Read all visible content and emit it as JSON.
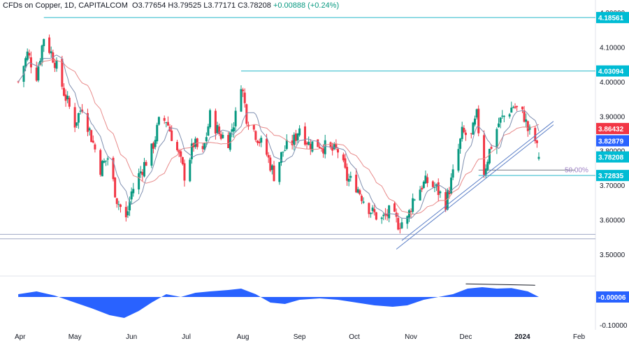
{
  "header": {
    "symbol": "CFDs on Copper, 1D, CAPITALCOM",
    "open": "O3.77654",
    "high": "H3.79525",
    "low": "L3.77171",
    "close": "C3.78208",
    "change": "+0.00888 (+0.24%)"
  },
  "colors": {
    "up": "#089981",
    "down": "#f23645",
    "level_line": "#26b7c9",
    "sma_fast": "#7f8fb0",
    "sma_slow": "#e88a8a",
    "trendline": "#5b7fc7",
    "oscillator": "#2962ff",
    "fib_label": "#9c7fc4",
    "price_label_red": "#f23645",
    "price_label_blue": "#2962ff",
    "price_label_cyan": "#00bcd4"
  },
  "chart_data": {
    "type": "candlestick",
    "title": "CFDs on Copper, 1D, CAPITALCOM",
    "ylim": [
      3.45,
      4.2
    ],
    "y_ticks": [
      "4.20000",
      "4.10000",
      "4.00000",
      "3.90000",
      "3.80000",
      "3.70000",
      "3.60000",
      "3.50000"
    ],
    "x_ticks": [
      "Apr",
      "May",
      "Jun",
      "Jul",
      "Aug",
      "Sep",
      "Oct",
      "Nov",
      "Dec",
      "2024",
      "Feb"
    ],
    "price_labels": [
      {
        "text": "4.18561",
        "value": 4.18561,
        "style": "cyan"
      },
      {
        "text": "4.03094",
        "value": 4.03094,
        "style": "cyan"
      },
      {
        "text": "3.86432",
        "value": 3.86432,
        "style": "red"
      },
      {
        "text": "3.82879",
        "value": 3.82879,
        "style": "blue"
      },
      {
        "text": "3.78208",
        "value": 3.78208,
        "style": "cyan"
      },
      {
        "text": "3.72835",
        "value": 3.72835,
        "style": "cyan"
      }
    ],
    "horizontal_levels": [
      4.18561,
      4.03094,
      3.72835
    ],
    "support_zone": [
      3.545,
      3.558
    ],
    "fib_label": "50.00%",
    "close_path": [
      [
        "2023-03-31",
        4.0
      ],
      [
        "2023-04-05",
        4.08
      ],
      [
        "2023-04-10",
        4.02
      ],
      [
        "2023-04-14",
        4.13
      ],
      [
        "2023-04-20",
        4.06
      ],
      [
        "2023-04-25",
        3.97
      ],
      [
        "2023-05-01",
        3.88
      ],
      [
        "2023-05-05",
        3.93
      ],
      [
        "2023-05-10",
        3.84
      ],
      [
        "2023-05-15",
        3.75
      ],
      [
        "2023-05-19",
        3.78
      ],
      [
        "2023-05-24",
        3.66
      ],
      [
        "2023-05-29",
        3.6
      ],
      [
        "2023-06-01",
        3.68
      ],
      [
        "2023-06-06",
        3.74
      ],
      [
        "2023-06-12",
        3.8
      ],
      [
        "2023-06-16",
        3.88
      ],
      [
        "2023-06-20",
        3.89
      ],
      [
        "2023-06-26",
        3.8
      ],
      [
        "2023-06-30",
        3.73
      ],
      [
        "2023-07-05",
        3.82
      ],
      [
        "2023-07-10",
        3.79
      ],
      [
        "2023-07-14",
        3.9
      ],
      [
        "2023-07-19",
        3.85
      ],
      [
        "2023-07-24",
        3.83
      ],
      [
        "2023-07-28",
        3.9
      ],
      [
        "2023-07-31",
        4.0
      ],
      [
        "2023-08-03",
        3.9
      ],
      [
        "2023-08-08",
        3.85
      ],
      [
        "2023-08-14",
        3.79
      ],
      [
        "2023-08-18",
        3.73
      ],
      [
        "2023-08-23",
        3.8
      ],
      [
        "2023-08-29",
        3.83
      ],
      [
        "2023-09-01",
        3.87
      ],
      [
        "2023-09-06",
        3.82
      ],
      [
        "2023-09-12",
        3.82
      ],
      [
        "2023-09-18",
        3.8
      ],
      [
        "2023-09-22",
        3.8
      ],
      [
        "2023-09-27",
        3.72
      ],
      [
        "2023-10-02",
        3.7
      ],
      [
        "2023-10-06",
        3.66
      ],
      [
        "2023-10-11",
        3.62
      ],
      [
        "2023-10-16",
        3.6
      ],
      [
        "2023-10-20",
        3.62
      ],
      [
        "2023-10-25",
        3.59
      ],
      [
        "2023-10-30",
        3.6
      ],
      [
        "2023-11-02",
        3.66
      ],
      [
        "2023-11-07",
        3.7
      ],
      [
        "2023-11-10",
        3.71
      ],
      [
        "2023-11-15",
        3.69
      ],
      [
        "2023-11-20",
        3.65
      ],
      [
        "2023-11-24",
        3.73
      ],
      [
        "2023-11-29",
        3.85
      ],
      [
        "2023-12-04",
        3.84
      ],
      [
        "2023-12-07",
        3.9
      ],
      [
        "2023-12-11",
        3.74
      ],
      [
        "2023-12-14",
        3.8
      ],
      [
        "2023-12-19",
        3.88
      ],
      [
        "2023-12-22",
        3.9
      ],
      [
        "2023-12-27",
        3.93
      ],
      [
        "2024-01-02",
        3.9
      ],
      [
        "2024-01-04",
        3.86
      ],
      [
        "2024-01-08",
        3.83
      ],
      [
        "2024-01-10",
        3.78
      ]
    ],
    "oscillator": {
      "labels": [
        "-0.00006",
        "-0.10000"
      ],
      "values": [
        [
          "2023-03-31",
          0.01
        ],
        [
          "2023-04-10",
          0.02
        ],
        [
          "2023-04-20",
          0.005
        ],
        [
          "2023-05-01",
          -0.02
        ],
        [
          "2023-05-10",
          -0.04
        ],
        [
          "2023-05-20",
          -0.065
        ],
        [
          "2023-05-28",
          -0.075
        ],
        [
          "2023-06-05",
          -0.05
        ],
        [
          "2023-06-12",
          -0.02
        ],
        [
          "2023-06-20",
          0.01
        ],
        [
          "2023-06-28",
          0.0
        ],
        [
          "2023-07-06",
          0.015
        ],
        [
          "2023-07-14",
          0.02
        ],
        [
          "2023-07-24",
          0.025
        ],
        [
          "2023-07-31",
          0.03
        ],
        [
          "2023-08-08",
          0.01
        ],
        [
          "2023-08-16",
          -0.02
        ],
        [
          "2023-08-24",
          -0.025
        ],
        [
          "2023-09-01",
          -0.01
        ],
        [
          "2023-09-12",
          -0.005
        ],
        [
          "2023-09-22",
          -0.01
        ],
        [
          "2023-10-02",
          -0.02
        ],
        [
          "2023-10-12",
          -0.03
        ],
        [
          "2023-10-22",
          -0.035
        ],
        [
          "2023-10-30",
          -0.03
        ],
        [
          "2023-11-08",
          -0.01
        ],
        [
          "2023-11-16",
          0.0
        ],
        [
          "2023-11-24",
          0.01
        ],
        [
          "2023-12-02",
          0.03
        ],
        [
          "2023-12-10",
          0.035
        ],
        [
          "2023-12-18",
          0.03
        ],
        [
          "2023-12-26",
          0.032
        ],
        [
          "2024-01-04",
          0.02
        ],
        [
          "2024-01-10",
          0.0
        ]
      ]
    }
  }
}
